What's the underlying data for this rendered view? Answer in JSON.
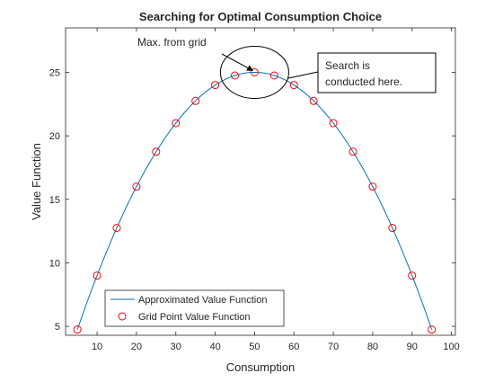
{
  "chart_data": {
    "type": "line",
    "title": "Searching for Optimal Consumption Choice",
    "xlabel": "Consumption",
    "ylabel": "Value Function",
    "xlim": [
      2,
      101
    ],
    "ylim": [
      4.3,
      28.5
    ],
    "x_ticks": [
      10,
      20,
      30,
      40,
      50,
      60,
      70,
      80,
      90,
      100
    ],
    "y_ticks": [
      5,
      10,
      15,
      20,
      25
    ],
    "grid": false,
    "legend_position": "bottom-left",
    "series": [
      {
        "name": "Approximated Value Function",
        "style": "line",
        "color": "#0072BD",
        "x": [
          5,
          10,
          15,
          20,
          25,
          30,
          35,
          40,
          45,
          50,
          55,
          60,
          65,
          70,
          75,
          80,
          85,
          90,
          95
        ],
        "y": [
          4.75,
          9.0,
          12.75,
          16.0,
          18.75,
          21.0,
          22.75,
          24.0,
          24.75,
          25.0,
          24.75,
          24.0,
          22.75,
          21.0,
          18.75,
          16.0,
          12.75,
          9.0,
          4.75
        ]
      },
      {
        "name": "Grid Point Value Function",
        "style": "marker-circle",
        "color": "#FF0000",
        "x": [
          5,
          10,
          15,
          20,
          25,
          30,
          35,
          40,
          45,
          50,
          55,
          60,
          65,
          70,
          75,
          80,
          85,
          90,
          95
        ],
        "y": [
          4.75,
          9.0,
          12.75,
          16.0,
          18.75,
          21.0,
          22.75,
          24.0,
          24.75,
          25.0,
          24.75,
          24.0,
          22.75,
          21.0,
          18.75,
          16.0,
          12.75,
          9.0,
          4.75
        ]
      }
    ],
    "annotations": {
      "arrow_text": "Max. from grid",
      "arrow_target": [
        50,
        25.0
      ],
      "box_lines": [
        "Search is",
        "conducted here."
      ],
      "ellipse_center": [
        50,
        25.0
      ]
    }
  }
}
